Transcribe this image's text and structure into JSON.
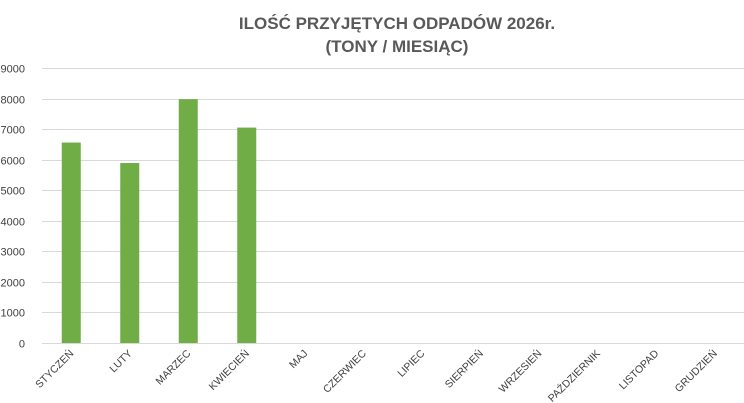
{
  "chart_data": {
    "type": "bar",
    "title": "ILOŚĆ PRZYJĘTYCH ODPADÓW 2026r.",
    "subtitle": "(TONY / MIESIĄC)",
    "categories": [
      "STYCZEŃ",
      "LUTY",
      "MARZEC",
      "KWIECIEŃ",
      "MAJ",
      "CZERWIEC",
      "LIPIEC",
      "SIERPIEŃ",
      "WRZESIEŃ",
      "PAŹDZIERNIK",
      "LISTOPAD",
      "GRUDZIEŃ"
    ],
    "values": [
      6560,
      5890,
      7980,
      7050,
      null,
      null,
      null,
      null,
      null,
      null,
      null,
      null
    ],
    "ylim": [
      0,
      9000
    ],
    "yticks": [
      0,
      1000,
      2000,
      3000,
      4000,
      5000,
      6000,
      7000,
      8000,
      9000
    ],
    "grid": true,
    "bar_color": "#70ad47",
    "grid_color": "#d9d9d9",
    "text_color": "#595959"
  }
}
